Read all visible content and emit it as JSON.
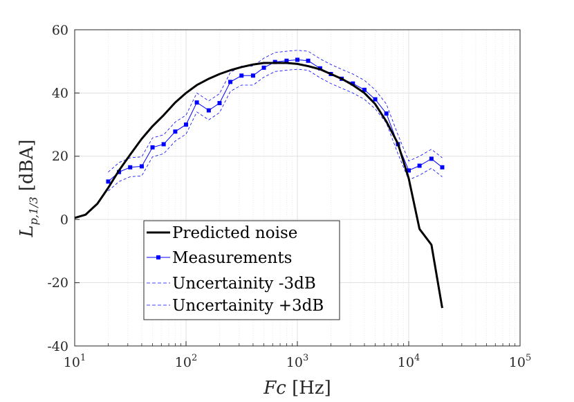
{
  "chart_data": {
    "type": "line",
    "title": "",
    "xscale": "log",
    "xlim": [
      10,
      100000
    ],
    "ylim": [
      -40,
      60
    ],
    "xticks": [
      {
        "base": "10",
        "exp": "1"
      },
      {
        "base": "10",
        "exp": "2"
      },
      {
        "base": "10",
        "exp": "3"
      },
      {
        "base": "10",
        "exp": "4"
      },
      {
        "base": "10",
        "exp": "5"
      }
    ],
    "yticks": [
      "60",
      "40",
      "20",
      "0",
      "-20",
      "-40"
    ],
    "ytick_values": [
      60,
      40,
      20,
      0,
      -20,
      -40
    ],
    "xlabel": {
      "main": "Fc",
      "unit": "[Hz]"
    },
    "ylabel": {
      "main": "L",
      "sub": "p,1/3",
      "unit": "[dBA]"
    },
    "grid": true,
    "legend_position": "lower-left",
    "colors": {
      "predicted": "#000000",
      "measured": "#0000ff",
      "uncertainty": "#0000ff"
    },
    "series": [
      {
        "name": "Predicted noise",
        "style": "solid-black-thick",
        "x": [
          10,
          12.5,
          16,
          20,
          25,
          31.5,
          40,
          50,
          63,
          80,
          100,
          125,
          160,
          200,
          250,
          315,
          400,
          500,
          630,
          800,
          1000,
          1250,
          1600,
          2000,
          2500,
          3150,
          4000,
          5000,
          6300,
          8000,
          10000,
          12500,
          16000,
          20000
        ],
        "y": [
          0.5,
          1.5,
          5.0,
          10.0,
          15.5,
          20.5,
          25.5,
          29.5,
          33.0,
          37.0,
          40.0,
          42.5,
          44.5,
          46.0,
          47.2,
          48.2,
          49.0,
          49.5,
          49.5,
          49.5,
          49.2,
          48.5,
          47.5,
          46.0,
          44.5,
          42.5,
          40.0,
          36.5,
          31.0,
          24.0,
          13.0,
          -3.0,
          -8.0,
          -28.0
        ]
      },
      {
        "name": "Measurements",
        "style": "blue-line-square-markers",
        "x": [
          20,
          25,
          31.5,
          40,
          50,
          63,
          80,
          100,
          125,
          160,
          200,
          250,
          315,
          400,
          500,
          630,
          800,
          1000,
          1250,
          1600,
          2000,
          2500,
          3150,
          4000,
          5000,
          6300,
          8000,
          10000,
          12500,
          16000,
          20000
        ],
        "y": [
          12.0,
          15.0,
          16.5,
          16.8,
          22.8,
          23.8,
          27.8,
          30.0,
          37.0,
          34.5,
          36.8,
          43.5,
          45.5,
          45.5,
          48.0,
          49.8,
          50.2,
          50.5,
          50.2,
          47.8,
          46.0,
          44.5,
          43.0,
          41.0,
          38.0,
          33.5,
          23.8,
          15.5,
          17.0,
          19.2,
          16.5
        ]
      },
      {
        "name": "Uncertainity -3dB",
        "style": "blue-dashed-thin",
        "x": [
          20,
          25,
          31.5,
          40,
          50,
          63,
          80,
          100,
          125,
          160,
          200,
          250,
          315,
          400,
          500,
          630,
          800,
          1000,
          1250,
          1600,
          2000,
          2500,
          3150,
          4000,
          5000,
          6300,
          8000,
          10000,
          12500,
          16000,
          20000
        ],
        "y": [
          9.0,
          12.0,
          13.5,
          13.8,
          19.8,
          20.8,
          24.8,
          27.0,
          34.0,
          31.5,
          33.8,
          40.5,
          42.5,
          42.5,
          45.0,
          46.8,
          47.2,
          47.5,
          47.2,
          44.8,
          43.0,
          41.5,
          40.0,
          38.0,
          35.0,
          30.5,
          20.8,
          12.5,
          14.0,
          16.2,
          13.5
        ]
      },
      {
        "name": "Uncertainity +3dB",
        "style": "blue-dashed-thin",
        "x": [
          20,
          25,
          31.5,
          40,
          50,
          63,
          80,
          100,
          125,
          160,
          200,
          250,
          315,
          400,
          500,
          630,
          800,
          1000,
          1250,
          1600,
          2000,
          2500,
          3150,
          4000,
          5000,
          6300,
          8000,
          10000,
          12500,
          16000,
          20000
        ],
        "y": [
          15.0,
          18.0,
          19.5,
          19.8,
          25.8,
          26.8,
          30.8,
          33.0,
          40.0,
          37.5,
          39.8,
          46.5,
          48.5,
          48.5,
          51.0,
          52.8,
          53.2,
          53.5,
          53.2,
          50.8,
          49.0,
          47.5,
          46.0,
          44.0,
          41.0,
          36.5,
          26.8,
          18.5,
          20.0,
          22.2,
          19.5
        ]
      }
    ]
  }
}
